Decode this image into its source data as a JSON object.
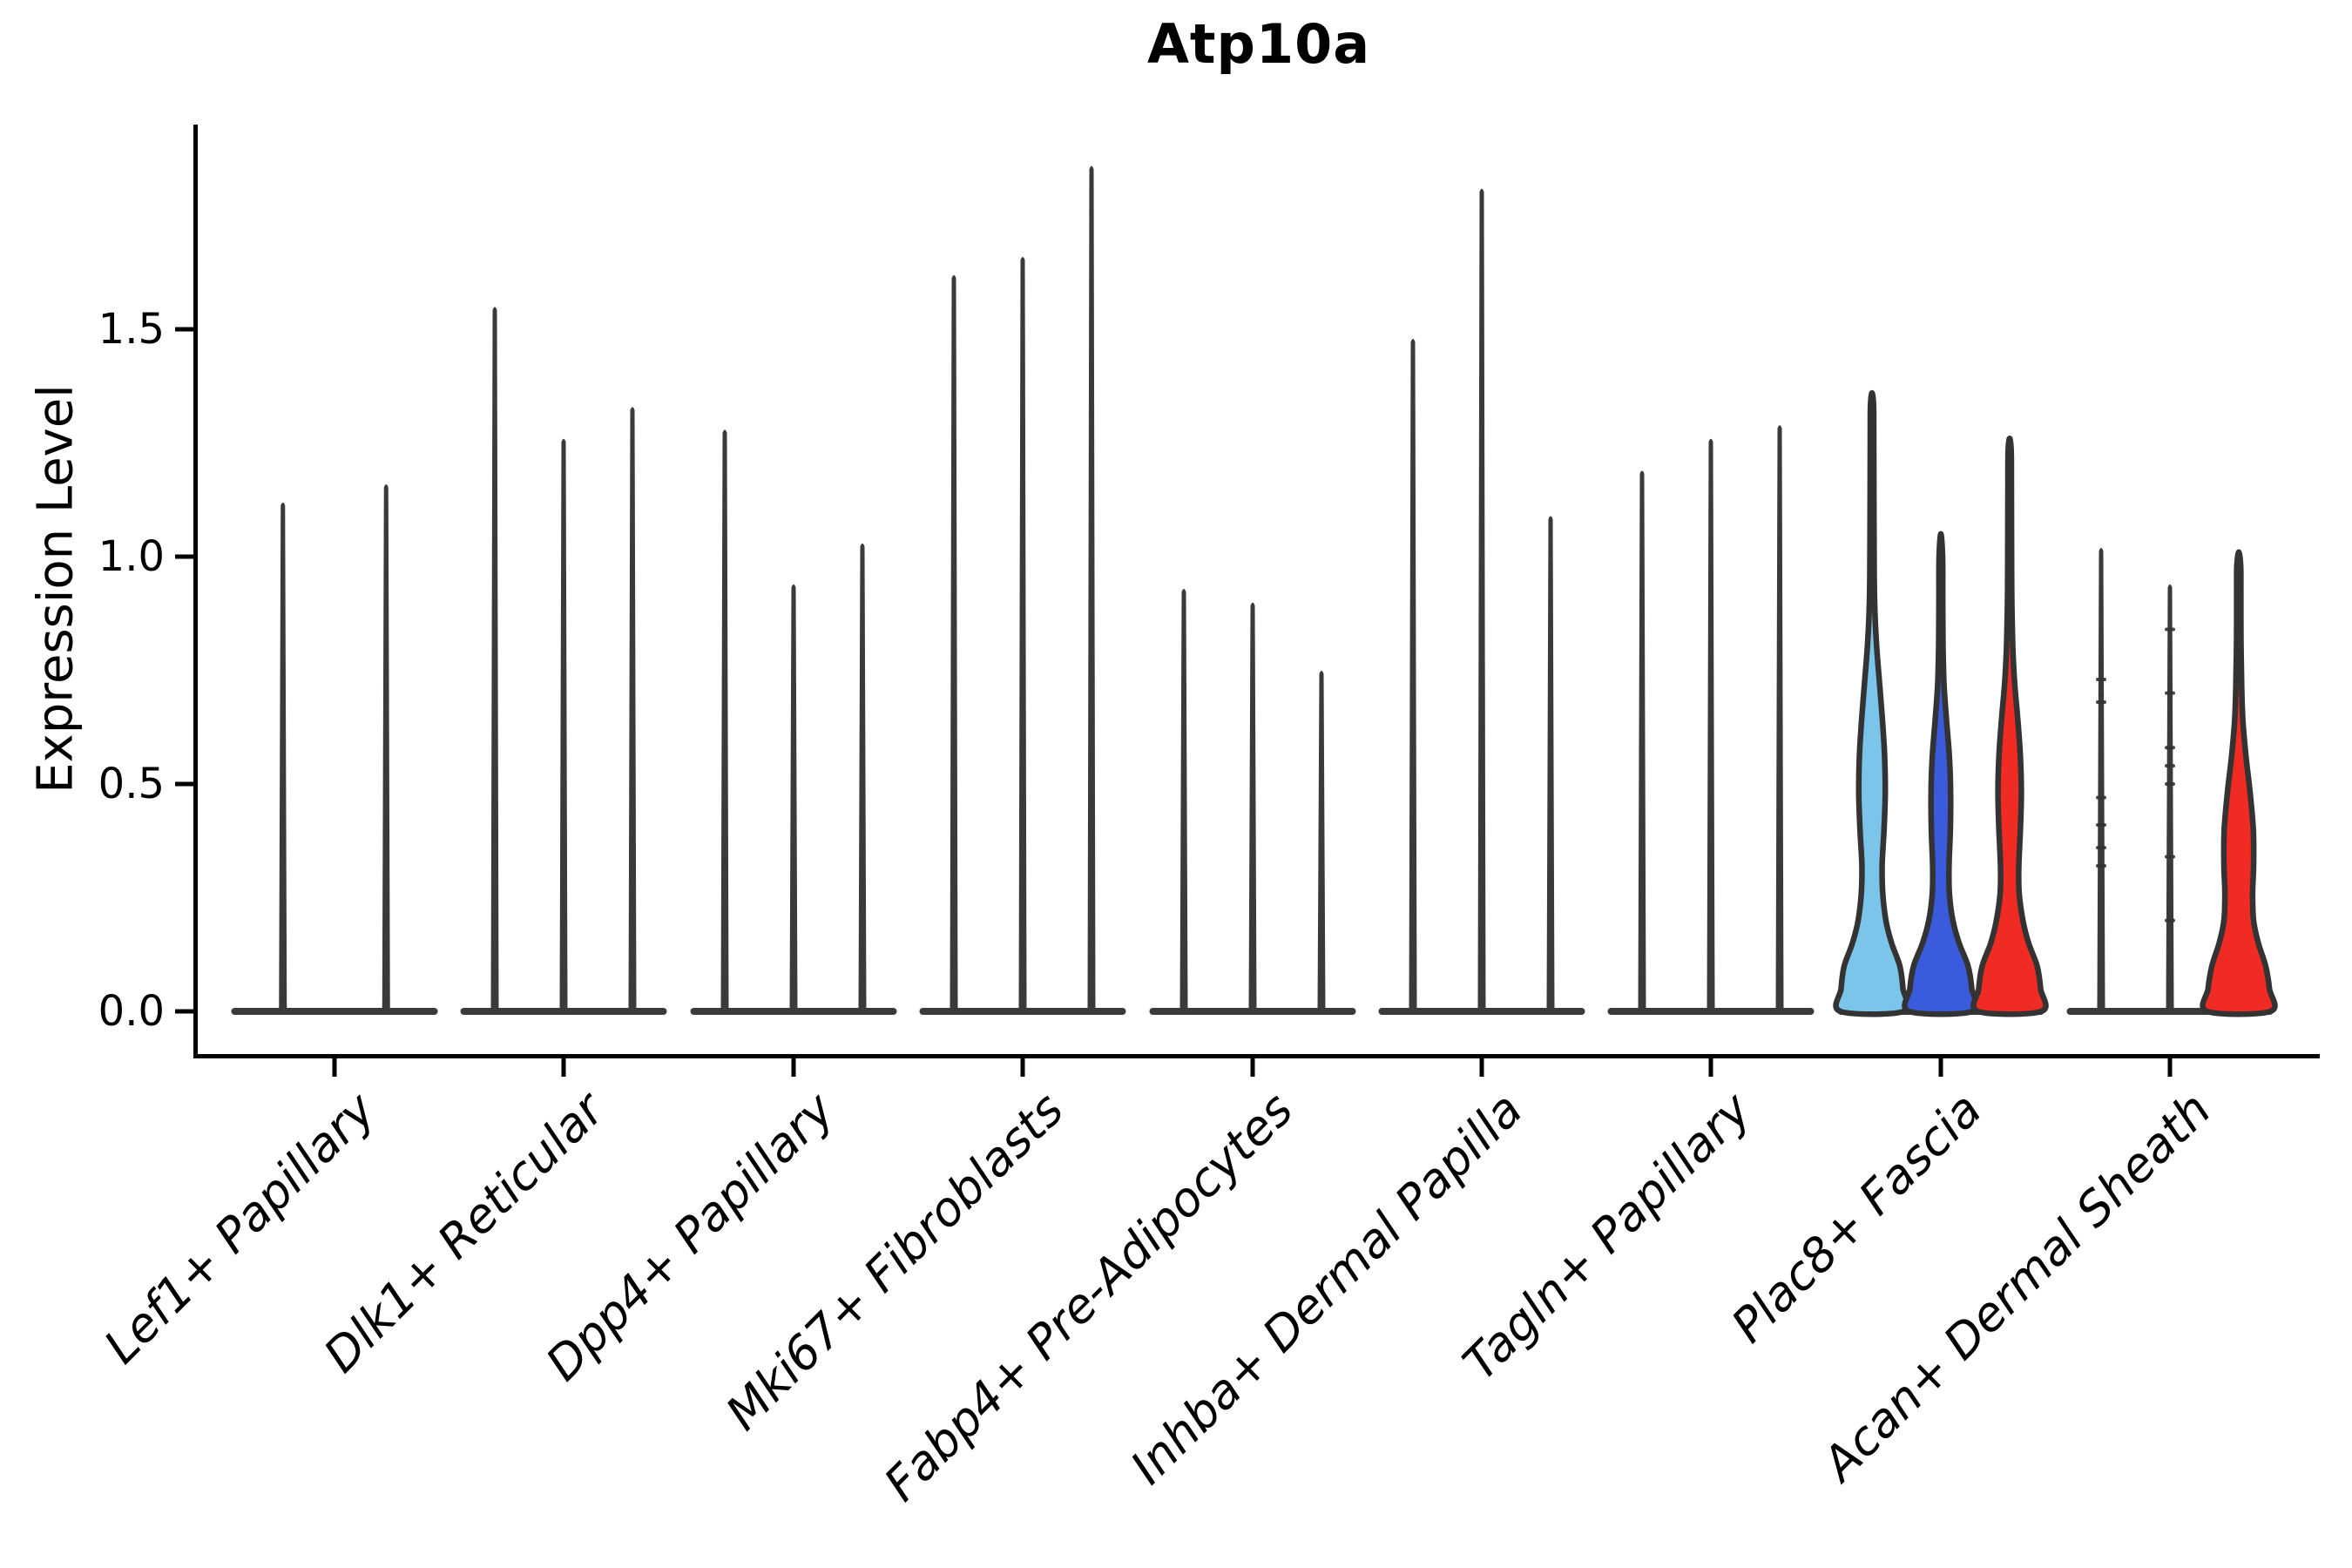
{
  "figure": {
    "title": "Atp10a"
  },
  "y_axis": {
    "label": "Expression Level",
    "tick_labels": [
      "0.0",
      "0.5",
      "1.0",
      "1.5"
    ],
    "tick_values": [
      0.0,
      0.5,
      1.0,
      1.5
    ]
  },
  "x_axis": {
    "categories": [
      "Lef1+ Papillary",
      "Dlk1+ Reticular",
      "Dpp4+ Papillary",
      "Mki67+ Fibroblasts",
      "Fabp4+ Pre-Adipocytes",
      "Inhba+ Dermal Papilla",
      "Tagln+ Papillary",
      "Plac8+ Fascia",
      "Acan+ Dermal Sheath"
    ]
  },
  "colors": {
    "outline": "#333333",
    "spike": "#3a3a3a",
    "baseline_bar": "#3a3a3a",
    "split_lightblue": "#7CC5EA",
    "split_blue": "#3A5BDC",
    "split_red": "#EF2B23",
    "axis": "#000000"
  },
  "chart_data": {
    "type": "violin",
    "title": "Atp10a",
    "xlabel": "",
    "ylabel": "Expression Level",
    "ylim": [
      0,
      1.95
    ],
    "yticks": [
      0.0,
      0.5,
      1.0,
      1.5
    ],
    "grid": "off",
    "legend": "none",
    "description": "Split violin plot of Atp10a expression per fibroblast cluster; most violins collapse to thin zero-spikes with a sparse tail of expressing cells; Plac8+ Fascia shows three wide violins (light blue, blue, red splits) and Acan+ Dermal Sheath shows a wide red split violin.",
    "categories": [
      "Lef1+ Papillary",
      "Dlk1+ Reticular",
      "Dpp4+ Papillary",
      "Mki67+ Fibroblasts",
      "Fabp4+ Pre-Adipocytes",
      "Inhba+ Dermal Papilla",
      "Tagln+ Papillary",
      "Plac8+ Fascia",
      "Acan+ Dermal Sheath"
    ],
    "groups": [
      {
        "category": "Lef1+ Papillary",
        "violins": [
          {
            "shape": "spike",
            "max": 1.12,
            "fill": "#3a3a3a"
          },
          {
            "shape": "spike",
            "max": 1.16,
            "fill": "#3a3a3a"
          }
        ]
      },
      {
        "category": "Dlk1+ Reticular",
        "violins": [
          {
            "shape": "spike",
            "max": 1.55,
            "fill": "#3a3a3a"
          },
          {
            "shape": "spike",
            "max": 1.26,
            "fill": "#3a3a3a"
          },
          {
            "shape": "spike",
            "max": 1.33,
            "fill": "#3a3a3a"
          }
        ]
      },
      {
        "category": "Dpp4+ Papillary",
        "violins": [
          {
            "shape": "spike",
            "max": 1.28,
            "fill": "#3a3a3a"
          },
          {
            "shape": "spike",
            "max": 0.94,
            "fill": "#3a3a3a"
          },
          {
            "shape": "spike",
            "max": 1.03,
            "fill": "#3a3a3a"
          }
        ]
      },
      {
        "category": "Mki67+ Fibroblasts",
        "violins": [
          {
            "shape": "spike",
            "max": 1.62,
            "fill": "#3a3a3a"
          },
          {
            "shape": "spike",
            "max": 1.66,
            "fill": "#3a3a3a"
          },
          {
            "shape": "spike",
            "max": 1.86,
            "fill": "#3a3a3a"
          }
        ]
      },
      {
        "category": "Fabp4+ Pre-Adipocytes",
        "violins": [
          {
            "shape": "spike",
            "max": 0.93,
            "fill": "#3a3a3a"
          },
          {
            "shape": "spike",
            "max": 0.9,
            "fill": "#3a3a3a"
          },
          {
            "shape": "spike",
            "max": 0.75,
            "fill": "#3a3a3a"
          }
        ]
      },
      {
        "category": "Inhba+ Dermal Papilla",
        "violins": [
          {
            "shape": "spike",
            "max": 1.48,
            "fill": "#3a3a3a"
          },
          {
            "shape": "spike",
            "max": 1.81,
            "fill": "#3a3a3a"
          },
          {
            "shape": "spike",
            "max": 1.09,
            "fill": "#3a3a3a"
          }
        ]
      },
      {
        "category": "Tagln+ Papillary",
        "violins": [
          {
            "shape": "spike",
            "max": 1.19,
            "fill": "#3a3a3a"
          },
          {
            "shape": "spike",
            "max": 1.26,
            "fill": "#3a3a3a"
          },
          {
            "shape": "spike",
            "max": 1.29,
            "fill": "#3a3a3a"
          }
        ]
      },
      {
        "category": "Plac8+ Fascia",
        "violins": [
          {
            "shape": "violin",
            "max": 1.36,
            "fill": "#7CC5EA",
            "profile": [
              [
                0,
                1.0
              ],
              [
                0.05,
                0.98
              ],
              [
                0.1,
                0.88
              ],
              [
                0.15,
                0.62
              ],
              [
                0.2,
                0.44
              ],
              [
                0.26,
                0.34
              ],
              [
                0.32,
                0.32
              ],
              [
                0.4,
                0.38
              ],
              [
                0.48,
                0.42
              ],
              [
                0.56,
                0.4
              ],
              [
                0.64,
                0.33
              ],
              [
                0.72,
                0.24
              ],
              [
                0.8,
                0.15
              ],
              [
                0.88,
                0.09
              ],
              [
                0.96,
                0.07
              ],
              [
                1.1,
                0.06
              ],
              [
                1.25,
                0.055
              ],
              [
                1.33,
                0.05
              ],
              [
                1.36,
                0.0
              ]
            ]
          },
          {
            "shape": "violin",
            "max": 1.05,
            "fill": "#3A5BDC",
            "profile": [
              [
                0,
                1.0
              ],
              [
                0.05,
                0.98
              ],
              [
                0.1,
                0.86
              ],
              [
                0.15,
                0.58
              ],
              [
                0.2,
                0.38
              ],
              [
                0.26,
                0.27
              ],
              [
                0.32,
                0.26
              ],
              [
                0.4,
                0.3
              ],
              [
                0.48,
                0.31
              ],
              [
                0.56,
                0.27
              ],
              [
                0.64,
                0.18
              ],
              [
                0.72,
                0.1
              ],
              [
                0.8,
                0.07
              ],
              [
                0.9,
                0.06
              ],
              [
                1.0,
                0.055
              ],
              [
                1.05,
                0.0
              ]
            ]
          },
          {
            "shape": "violin",
            "max": 1.26,
            "fill": "#EF2B23",
            "profile": [
              [
                0,
                1.0
              ],
              [
                0.05,
                0.98
              ],
              [
                0.1,
                0.87
              ],
              [
                0.15,
                0.6
              ],
              [
                0.2,
                0.42
              ],
              [
                0.26,
                0.3
              ],
              [
                0.32,
                0.29
              ],
              [
                0.4,
                0.34
              ],
              [
                0.48,
                0.37
              ],
              [
                0.56,
                0.34
              ],
              [
                0.64,
                0.26
              ],
              [
                0.72,
                0.16
              ],
              [
                0.8,
                0.1
              ],
              [
                0.9,
                0.07
              ],
              [
                1.0,
                0.06
              ],
              [
                1.15,
                0.055
              ],
              [
                1.23,
                0.05
              ],
              [
                1.26,
                0.0
              ]
            ]
          }
        ]
      },
      {
        "category": "Acan+ Dermal Sheath",
        "violins": [
          {
            "shape": "spike",
            "max": 1.02,
            "fill": "#3a3a3a",
            "dots": [
              0.73,
              0.68,
              0.47,
              0.41,
              0.36,
              0.32
            ]
          },
          {
            "shape": "spike",
            "max": 0.94,
            "fill": "#3a3a3a",
            "dots": [
              0.84,
              0.7,
              0.58,
              0.54,
              0.5,
              0.34,
              0.2
            ]
          },
          {
            "shape": "violin",
            "max": 1.01,
            "fill": "#EF2B23",
            "profile": [
              [
                0,
                1.0
              ],
              [
                0.05,
                0.97
              ],
              [
                0.1,
                0.85
              ],
              [
                0.15,
                0.62
              ],
              [
                0.2,
                0.47
              ],
              [
                0.26,
                0.44
              ],
              [
                0.32,
                0.47
              ],
              [
                0.4,
                0.46
              ],
              [
                0.48,
                0.36
              ],
              [
                0.56,
                0.23
              ],
              [
                0.64,
                0.13
              ],
              [
                0.72,
                0.09
              ],
              [
                0.82,
                0.07
              ],
              [
                0.92,
                0.065
              ],
              [
                0.98,
                0.06
              ],
              [
                1.01,
                0.0
              ]
            ]
          }
        ]
      }
    ]
  }
}
